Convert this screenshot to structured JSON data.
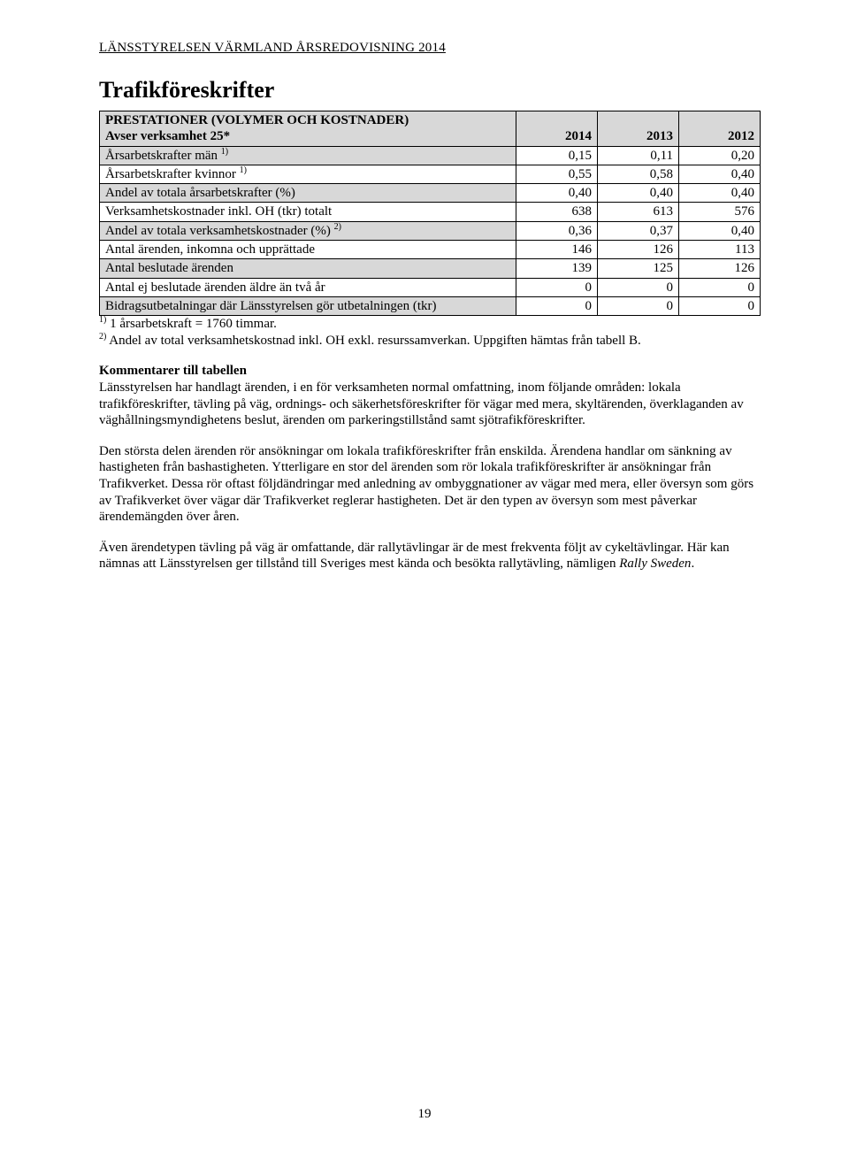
{
  "header": "LÄNSSTYRELSEN VÄRMLAND ÅRSREDOVISNING 2014",
  "section_title": "Trafikföreskrifter",
  "table": {
    "head_label_line1": "PRESTATIONER (VOLYMER OCH KOSTNADER)",
    "head_label_line2": "Avser verksamhet 25*",
    "years": [
      "2014",
      "2013",
      "2012"
    ],
    "rows": [
      {
        "shaded": true,
        "label": "Årsarbetskrafter män ",
        "sup": "1)",
        "v": [
          "0,15",
          "0,11",
          "0,20"
        ]
      },
      {
        "shaded": false,
        "label": "Årsarbetskrafter kvinnor ",
        "sup": "1)",
        "v": [
          "0,55",
          "0,58",
          "0,40"
        ]
      },
      {
        "shaded": true,
        "label": "Andel av totala årsarbetskrafter (%)",
        "sup": "",
        "v": [
          "0,40",
          "0,40",
          "0,40"
        ]
      },
      {
        "shaded": false,
        "label": "Verksamhetskostnader inkl. OH (tkr) totalt",
        "sup": "",
        "v": [
          "638",
          "613",
          "576"
        ]
      },
      {
        "shaded": true,
        "label": "Andel av totala verksamhetskostnader (%) ",
        "sup": "2)",
        "v": [
          "0,36",
          "0,37",
          "0,40"
        ]
      },
      {
        "shaded": false,
        "label": "Antal ärenden, inkomna och upprättade",
        "sup": "",
        "v": [
          "146",
          "126",
          "113"
        ]
      },
      {
        "shaded": true,
        "label": "Antal beslutade ärenden",
        "sup": "",
        "v": [
          "139",
          "125",
          "126"
        ]
      },
      {
        "shaded": false,
        "label": "Antal ej beslutade ärenden äldre än två år",
        "sup": "",
        "v": [
          "0",
          "0",
          "0"
        ]
      },
      {
        "shaded": true,
        "label": "Bidragsutbetalningar där Länsstyrelsen gör utbetalningen (tkr)",
        "sup": "",
        "v": [
          "0",
          "0",
          "0"
        ]
      }
    ]
  },
  "footnote1_sup": "1)",
  "footnote1": " 1 årsarbetskraft = 1760 timmar.",
  "footnote2_sup": "2)",
  "footnote2": " Andel av total verksamhetskostnad inkl. OH exkl. resurssamverkan. Uppgiften hämtas från tabell B.",
  "para_heading": "Kommentarer till tabellen",
  "para1": "Länsstyrelsen har handlagt ärenden, i en för verksamheten normal omfattning, inom följande områden: lokala trafikföreskrifter, tävling på väg, ordnings- och säkerhetsföreskrifter för vägar med mera, skyltärenden, överklaganden av väghållningsmyndighetens beslut, ärenden om parkeringstillstånd samt sjötrafikföreskrifter.",
  "para2": "Den största delen ärenden rör ansökningar om lokala trafikföreskrifter från enskilda. Ärendena handlar om sänkning av hastigheten från bashastigheten. Ytterligare en stor del ärenden som rör lokala trafikföreskrifter är ansökningar från Trafikverket. Dessa rör oftast följdändringar med anledning av ombyggnationer av vägar med mera, eller översyn som görs av Trafikverket över vägar där Trafikverket reglerar hastigheten. Det är den typen av översyn som mest påverkar ärendemängden över åren.",
  "para3_a": "Även ärendetypen tävling på väg är omfattande, där rallytävlingar är de mest frekventa följt av cykeltävlingar. Här kan nämnas att Länsstyrelsen ger tillstånd till Sveriges mest kända och besökta rallytävling, nämligen ",
  "para3_b_italic": "Rally Sweden",
  "para3_c": ".",
  "page_number": "19"
}
